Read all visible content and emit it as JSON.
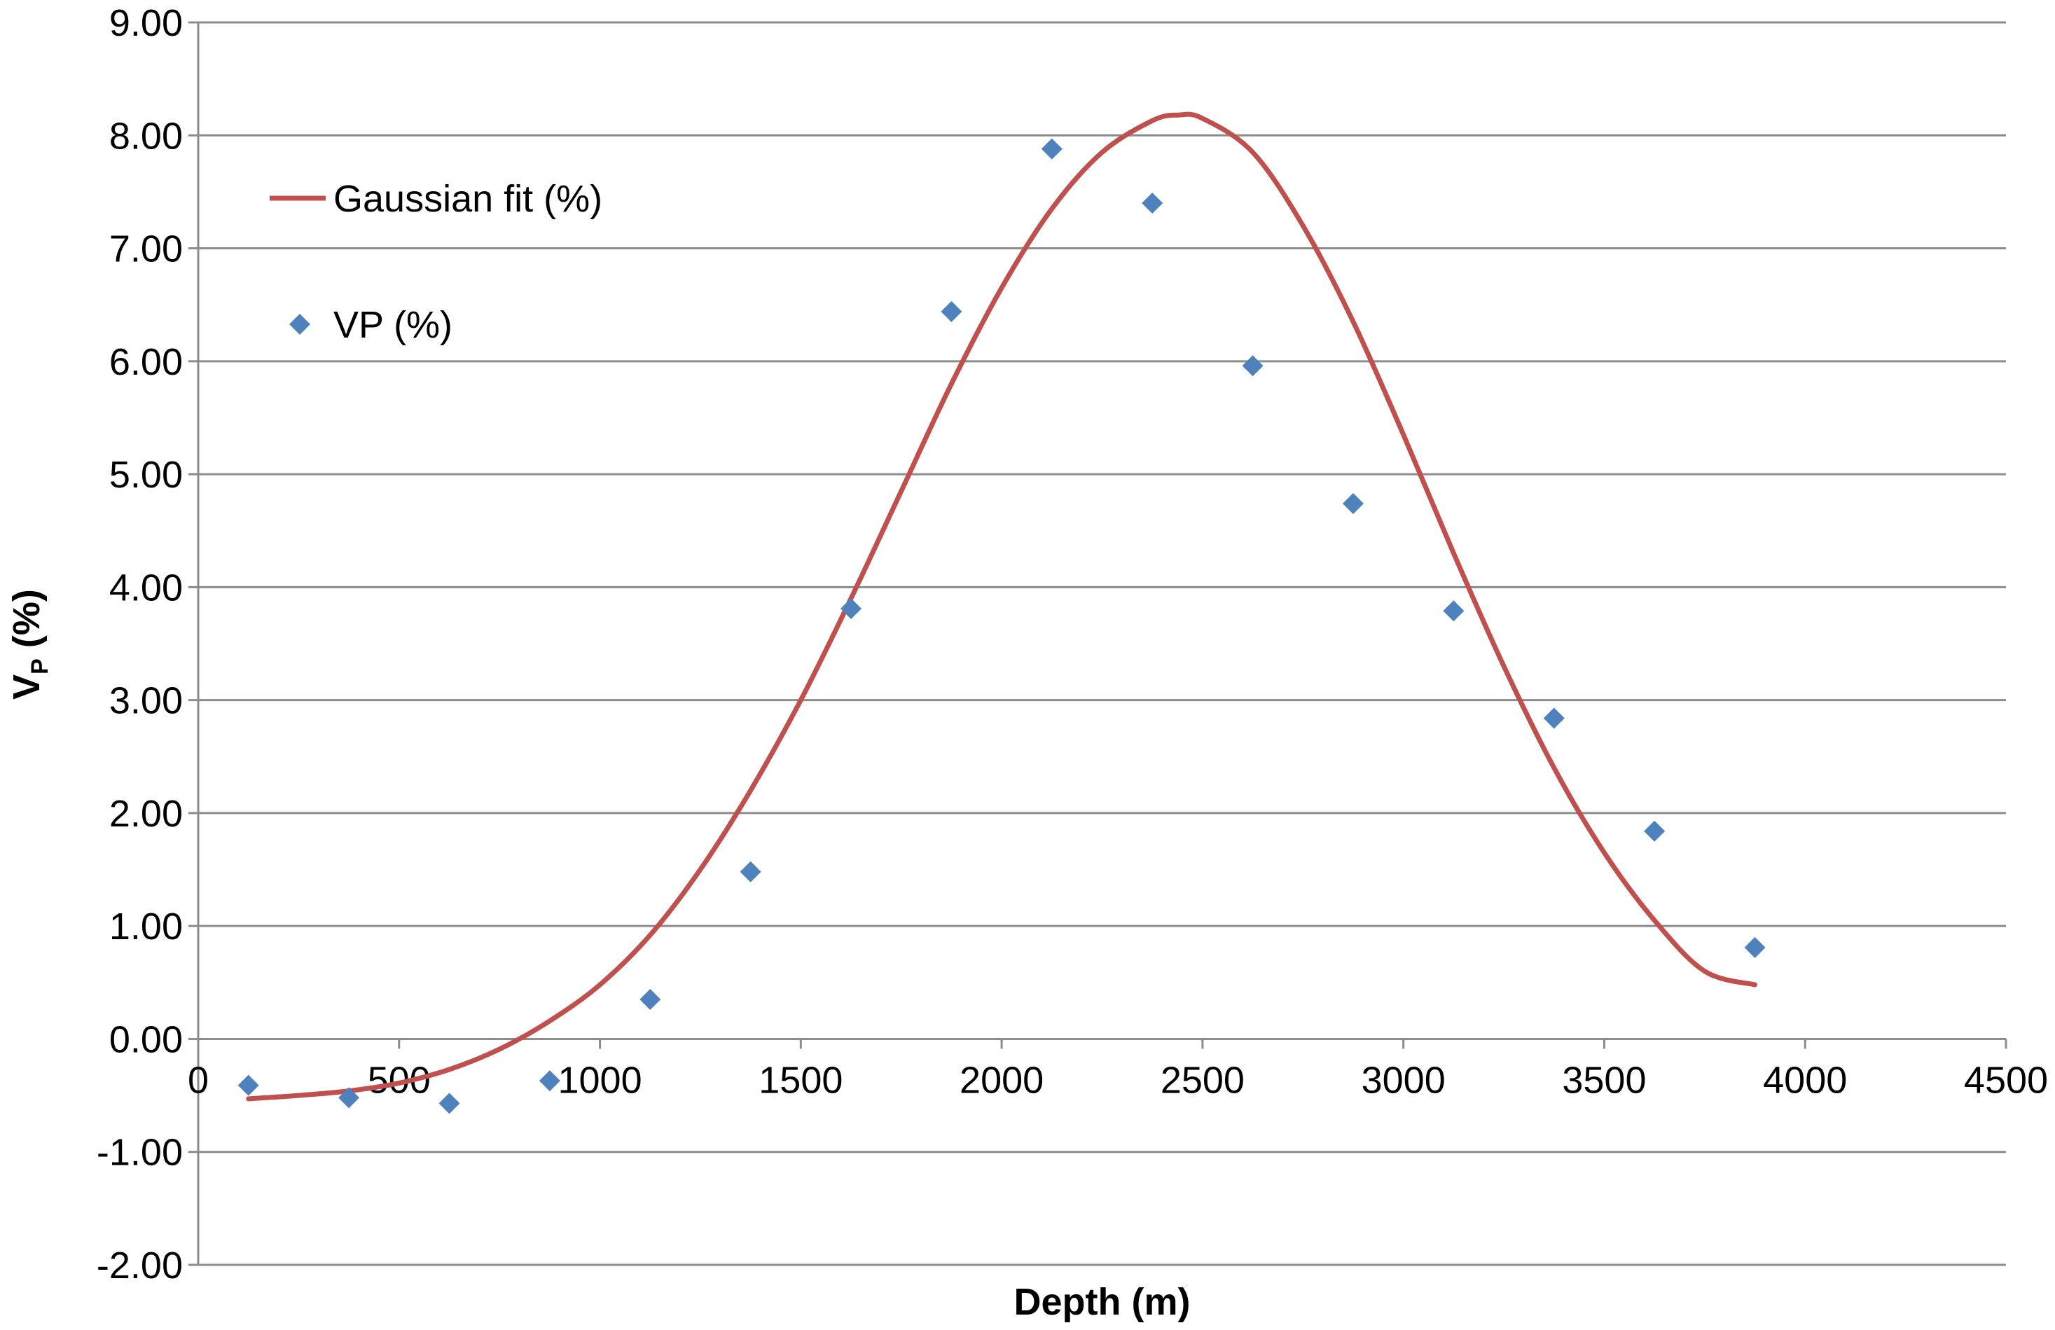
{
  "chart_data": {
    "type": "scatter",
    "title": "",
    "xlabel": "Depth (m)",
    "ylabel": {
      "main": "V",
      "sub": "P",
      "suffix": " (%)"
    },
    "xlim": [
      0,
      4500
    ],
    "ylim": [
      -2,
      9
    ],
    "xticks": [
      0,
      500,
      1000,
      1500,
      2000,
      2500,
      3000,
      3500,
      4000,
      4500
    ],
    "xtick_labels": [
      "0",
      "500",
      "1000",
      "1500",
      "2000",
      "2500",
      "3000",
      "3500",
      "4000",
      "4500"
    ],
    "yticks": [
      -2,
      -1,
      0,
      1,
      2,
      3,
      4,
      5,
      6,
      7,
      8,
      9
    ],
    "ytick_labels": [
      "-2.00",
      "-1.00",
      "0.00",
      "1.00",
      "2.00",
      "3.00",
      "4.00",
      "5.00",
      "6.00",
      "7.00",
      "8.00",
      "9.00"
    ],
    "grid": "horizontal",
    "legend_position": "top-left",
    "series": [
      {
        "name": "Gaussian fit (%)",
        "kind": "line",
        "color": "#C0504D",
        "x": [
          125,
          250,
          375,
          500,
          625,
          750,
          875,
          1000,
          1125,
          1250,
          1375,
          1500,
          1625,
          1750,
          1875,
          2000,
          2125,
          2250,
          2375,
          2440,
          2500,
          2625,
          2750,
          2875,
          3000,
          3125,
          3250,
          3375,
          3500,
          3625,
          3750,
          3875
        ],
        "y": [
          -0.53,
          -0.5,
          -0.46,
          -0.39,
          -0.27,
          -0.09,
          0.16,
          0.48,
          0.92,
          1.5,
          2.2,
          3.0,
          3.9,
          4.85,
          5.8,
          6.65,
          7.35,
          7.85,
          8.13,
          8.18,
          8.15,
          7.85,
          7.2,
          6.35,
          5.35,
          4.3,
          3.3,
          2.4,
          1.65,
          1.05,
          0.6,
          0.48
        ]
      },
      {
        "name": "VP (%)",
        "kind": "scatter",
        "marker": "diamond",
        "color": "#4F81BD",
        "x": [
          125,
          375,
          625,
          875,
          1125,
          1375,
          1625,
          1875,
          2125,
          2375,
          2625,
          2875,
          3125,
          3375,
          3625,
          3875
        ],
        "y": [
          -0.41,
          -0.52,
          -0.57,
          -0.37,
          0.35,
          1.48,
          3.81,
          6.44,
          7.88,
          7.4,
          5.96,
          4.74,
          3.79,
          2.84,
          1.84,
          0.81
        ]
      }
    ]
  }
}
